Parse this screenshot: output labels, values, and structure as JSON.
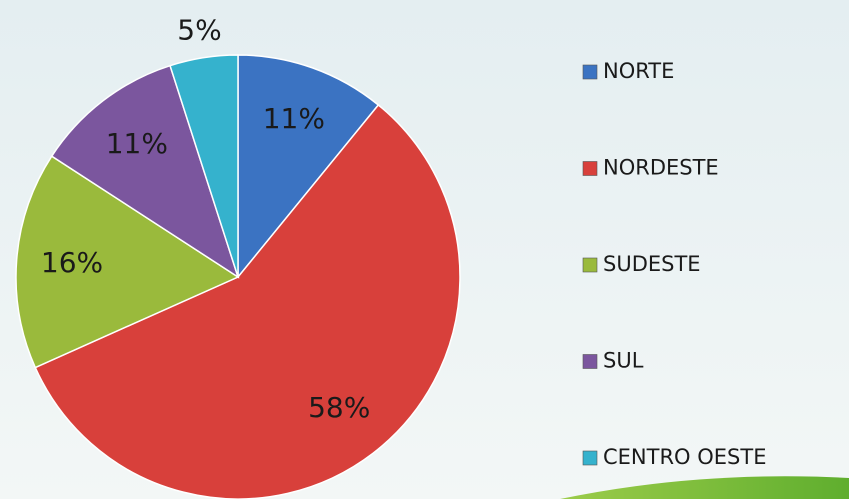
{
  "chart_data": {
    "type": "pie",
    "categories": [
      "NORTE",
      "NORDESTE",
      "SUDESTE",
      "SUL",
      "CENTRO OESTE"
    ],
    "values": [
      11,
      58,
      16,
      11,
      5
    ],
    "value_labels": [
      "11%",
      "58%",
      "16%",
      "11%",
      "5%"
    ],
    "colors": [
      "#3b73c2",
      "#d8403b",
      "#9aba3c",
      "#7b569e",
      "#35b2cd"
    ],
    "legend": "right"
  }
}
